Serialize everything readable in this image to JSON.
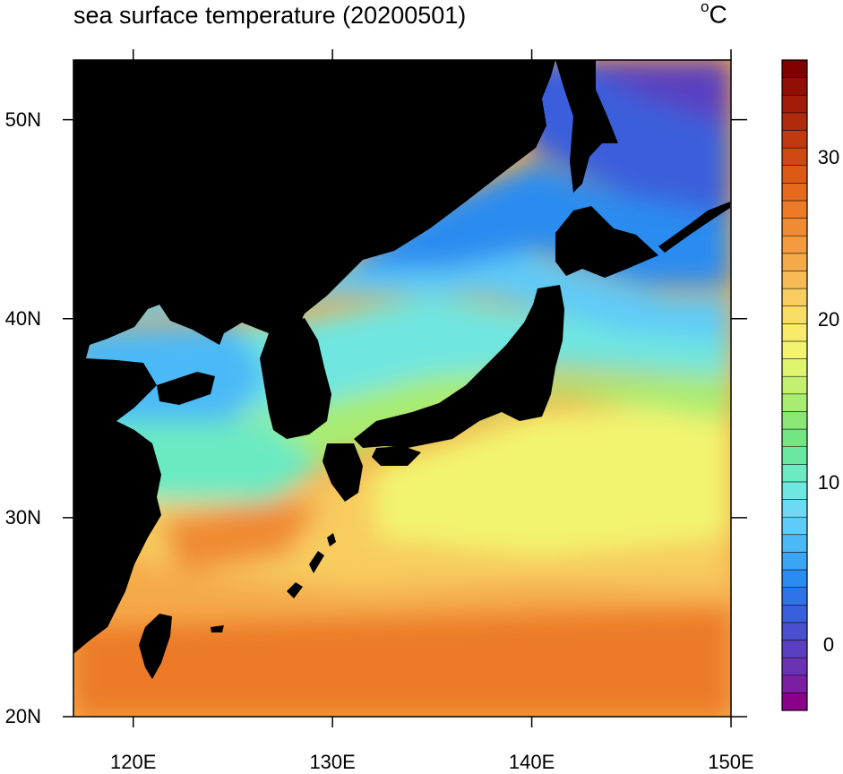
{
  "title": "sea surface temperature (20200501)",
  "unit_prefix": "o",
  "unit_suffix": "C",
  "map": {
    "lon_ticks": [
      {
        "lon": 120,
        "label": "120E"
      },
      {
        "lon": 130,
        "label": "130E"
      },
      {
        "lon": 140,
        "label": "140E"
      },
      {
        "lon": 150,
        "label": "150E"
      }
    ],
    "lat_ticks": [
      {
        "lat": 20,
        "label": "20N"
      },
      {
        "lat": 30,
        "label": "30N"
      },
      {
        "lat": 40,
        "label": "40N"
      },
      {
        "lat": 50,
        "label": "50N"
      }
    ],
    "lon_range": [
      117,
      150
    ],
    "lat_range": [
      20,
      53
    ],
    "land_color": "#000000"
  },
  "colorbar": {
    "min": -4,
    "max": 36,
    "step": 1,
    "tick_values": [
      0,
      10,
      20,
      30
    ],
    "tick_labels": [
      "0",
      "10",
      "20",
      "30"
    ],
    "colors": [
      "#8b008b",
      "#7b1fa2",
      "#6a33b4",
      "#5a3fc0",
      "#4a4fcf",
      "#3a5fdc",
      "#2e74e8",
      "#2a8cf0",
      "#3aa4f5",
      "#4cb9f7",
      "#5ecaf8",
      "#6ddaf5",
      "#6fe6e0",
      "#6beac3",
      "#6ae8a2",
      "#72e683",
      "#8ae775",
      "#a8ec72",
      "#c4f06f",
      "#dff46f",
      "#f2f46f",
      "#f8ea6b",
      "#f8dc66",
      "#f8cc5f",
      "#f7bb55",
      "#f5aa4a",
      "#f39a3f",
      "#f08a33",
      "#ec7a27",
      "#e66a1d",
      "#dc5a16",
      "#cf4a12",
      "#c03a0f",
      "#b02b0c",
      "#a11d09",
      "#911006",
      "#800000"
    ]
  }
}
